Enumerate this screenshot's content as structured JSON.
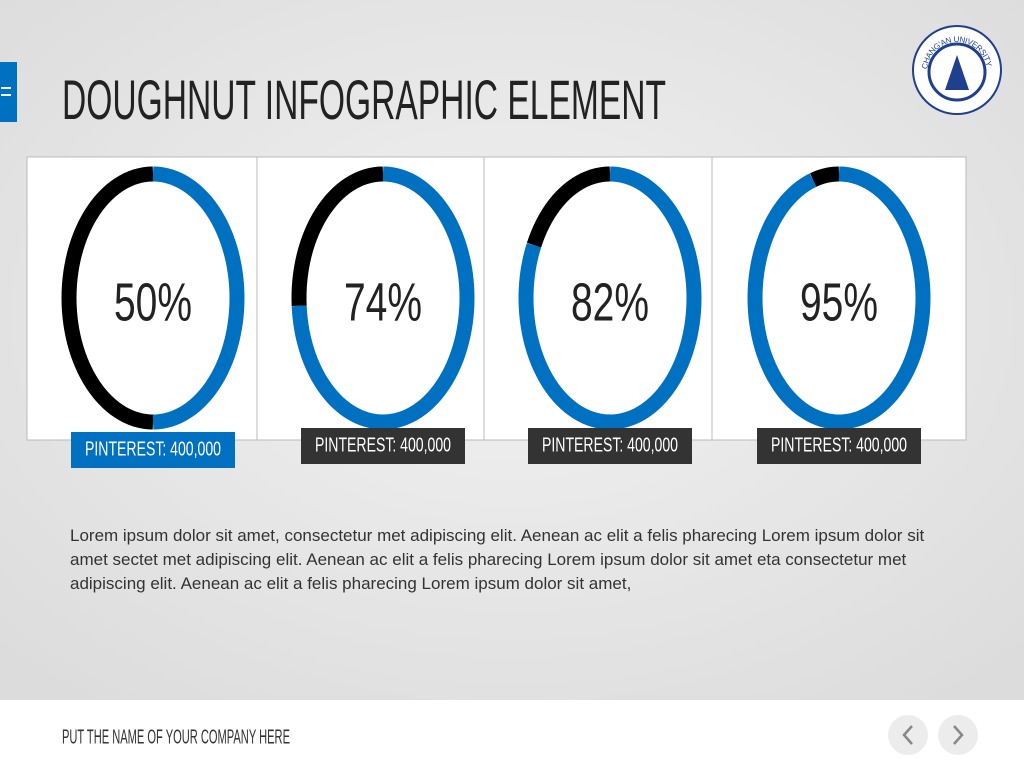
{
  "page": {
    "title": "DOUGHNUT INFOGRAPHIC ELEMENT",
    "logo_text": "CHANG'AN UNIVERSITY",
    "paragraph": "Lorem ipsum dolor sit amet, consectetur  met adipiscing elit. Aenean ac elit a felis pharecing Lorem ipsum dolor sit amet sectet met adipiscing elit. Aenean ac elit a felis pharecing Lorem ipsum dolor sit amet eta consectetur  met adipiscing elit. Aenean ac elit a felis pharecing Lorem ipsum dolor sit amet,",
    "footer": "PUT THE NAME OF YOUR COMPANY HERE"
  },
  "chart_data": [
    {
      "type": "doughnut",
      "values": [
        50
      ],
      "value_labels": [
        "50%"
      ],
      "caption": "PINTEREST: 400,000",
      "color": "#0070c0",
      "rest_color": "#000000",
      "caption_color": "#0070c0"
    },
    {
      "type": "doughnut",
      "values": [
        74
      ],
      "value_labels": [
        "74%"
      ],
      "caption": "PINTEREST: 400,000",
      "color": "#0070c0",
      "rest_color": "#000000",
      "caption_color": "#333333"
    },
    {
      "type": "doughnut",
      "values": [
        82
      ],
      "value_labels": [
        "82%"
      ],
      "caption": "PINTEREST: 400,000",
      "color": "#0070c0",
      "rest_color": "#000000",
      "caption_color": "#333333"
    },
    {
      "type": "doughnut",
      "values": [
        95
      ],
      "value_labels": [
        "95%"
      ],
      "caption": "PINTEREST: 400,000",
      "color": "#0070c0",
      "rest_color": "#000000",
      "caption_color": "#333333"
    }
  ]
}
